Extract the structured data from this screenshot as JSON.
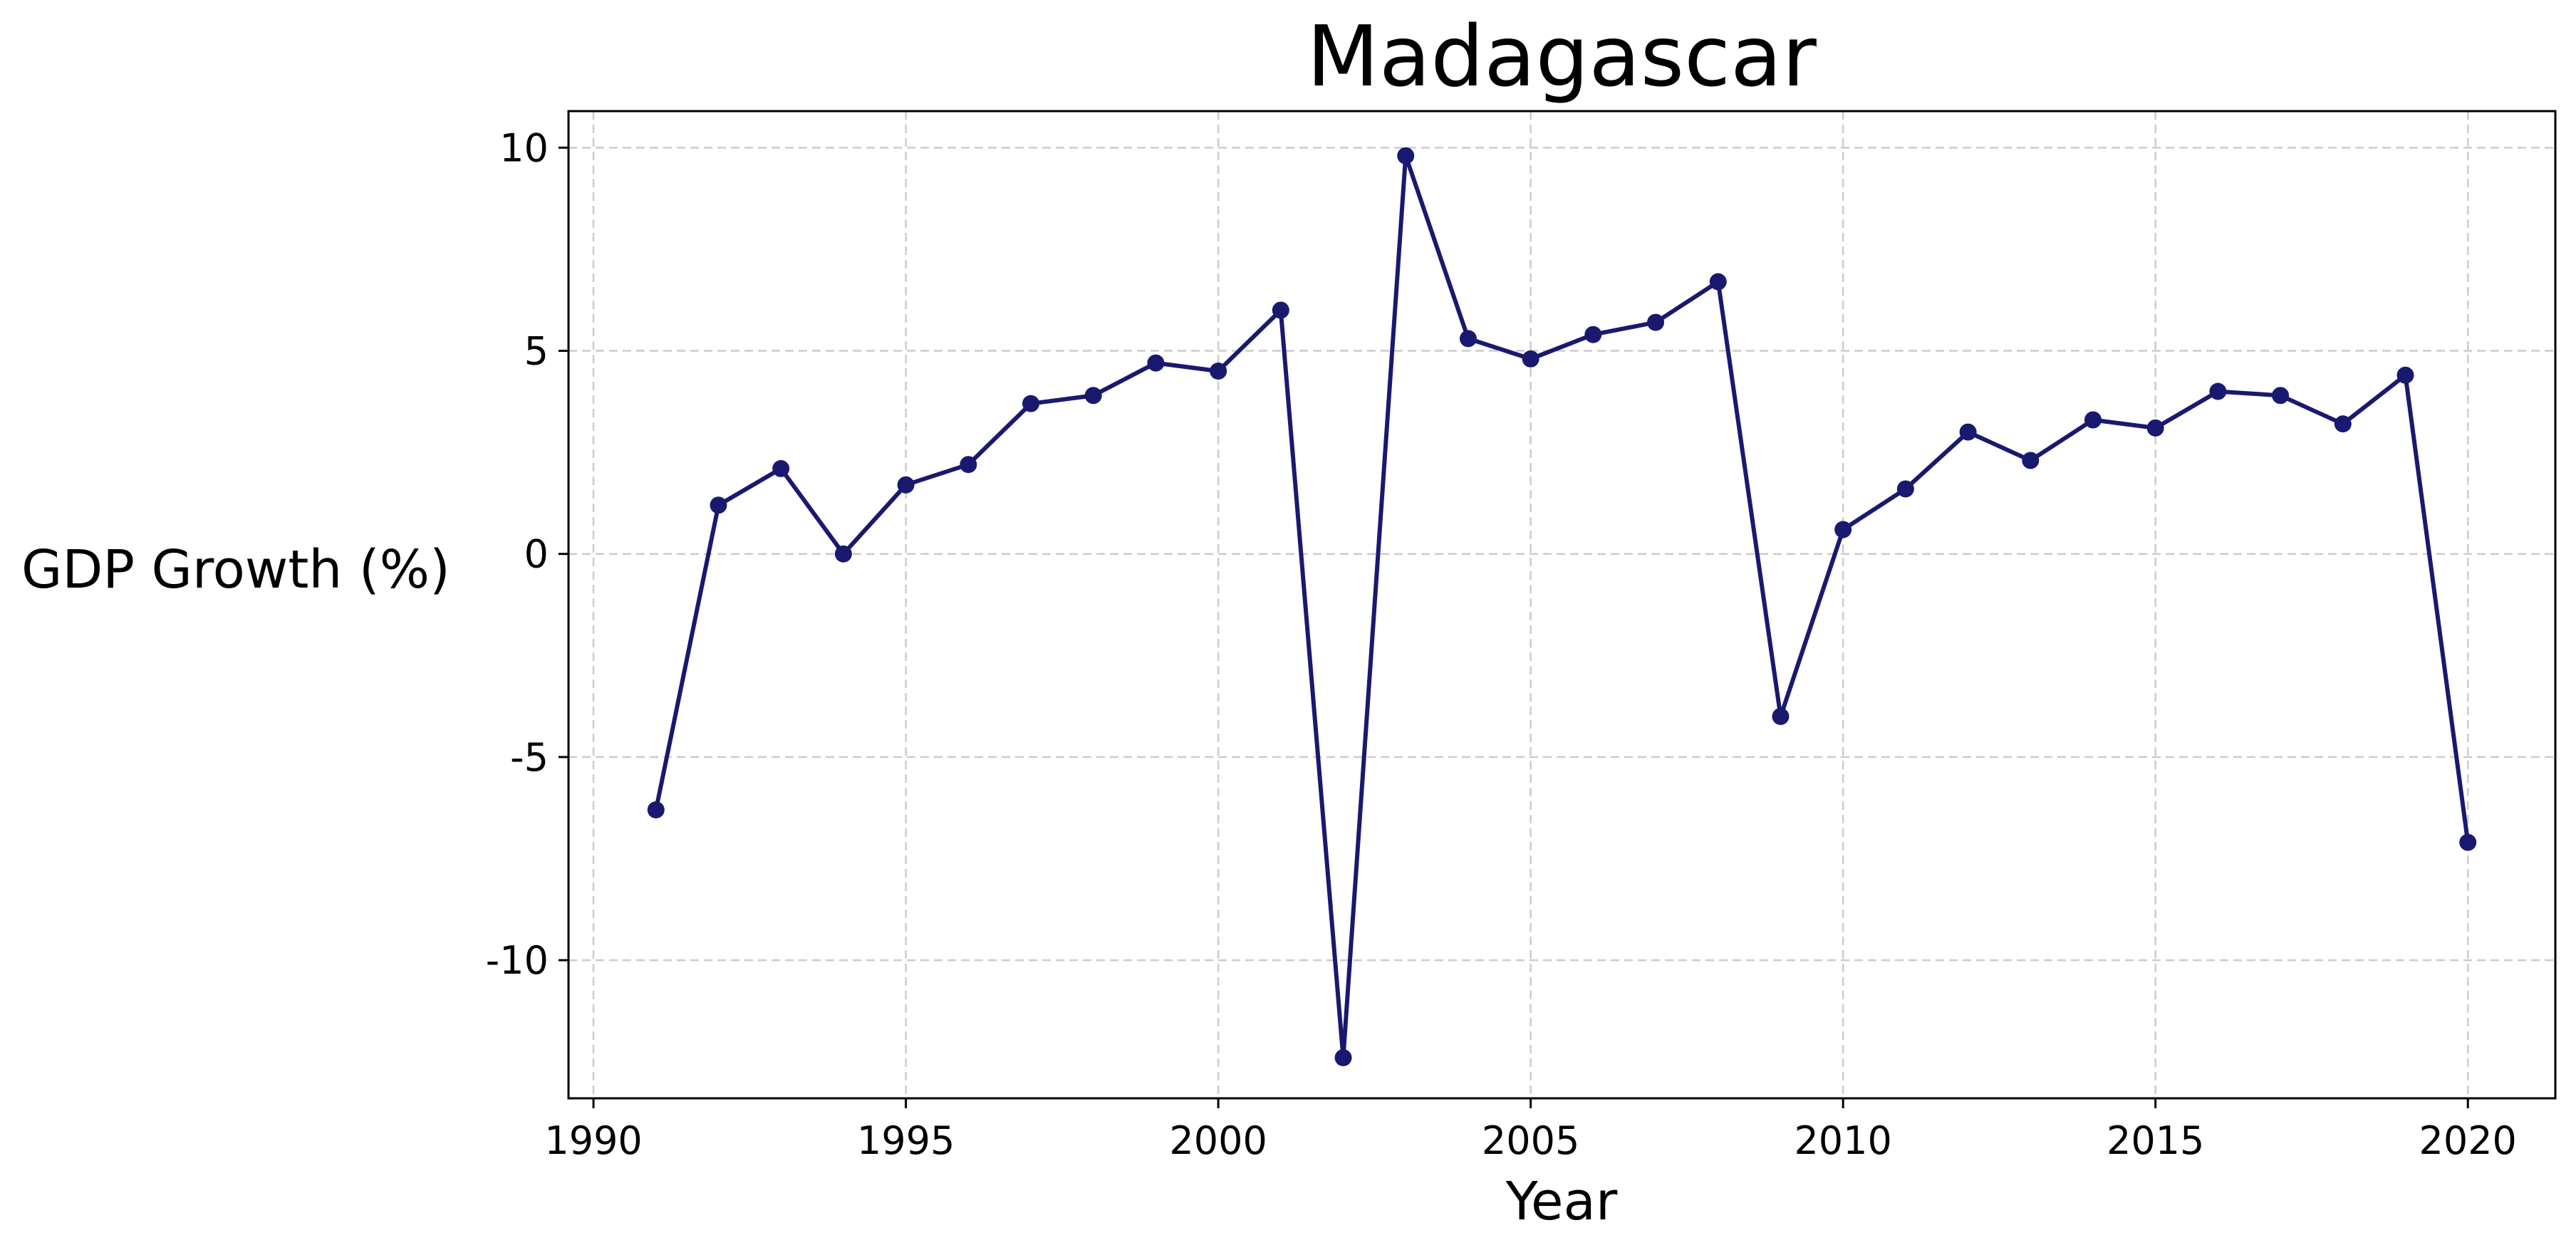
{
  "chart_data": {
    "type": "line",
    "title": "Madagascar",
    "xlabel": "Year",
    "ylabel": "GDP Growth (%)",
    "xlim": [
      1989.6,
      2021.4
    ],
    "ylim": [
      -13.4,
      10.9
    ],
    "xticks": [
      1990,
      1995,
      2000,
      2005,
      2010,
      2015,
      2020
    ],
    "yticks": [
      10,
      5,
      0,
      -5,
      -10
    ],
    "ytick_labels": [
      "10",
      "5",
      "0",
      "-5",
      "-10"
    ],
    "grid": true,
    "line_color": "#191970",
    "series": [
      {
        "x": [
          1991,
          1992,
          1993,
          1994,
          1995,
          1996,
          1997,
          1998,
          1999,
          2000,
          2001,
          2002,
          2003,
          2004,
          2005,
          2006,
          2007,
          2008,
          2009,
          2010,
          2011,
          2012,
          2013,
          2014,
          2015,
          2016,
          2017,
          2018,
          2019,
          2020
        ],
        "values": [
          -6.3,
          1.2,
          2.1,
          0.0,
          1.7,
          2.2,
          3.7,
          3.9,
          4.7,
          4.5,
          6.0,
          -12.4,
          9.8,
          5.3,
          4.8,
          5.4,
          5.7,
          6.7,
          -4.0,
          0.6,
          1.6,
          3.0,
          2.3,
          3.3,
          3.1,
          4.0,
          3.9,
          3.2,
          4.4,
          -7.1
        ]
      }
    ]
  }
}
